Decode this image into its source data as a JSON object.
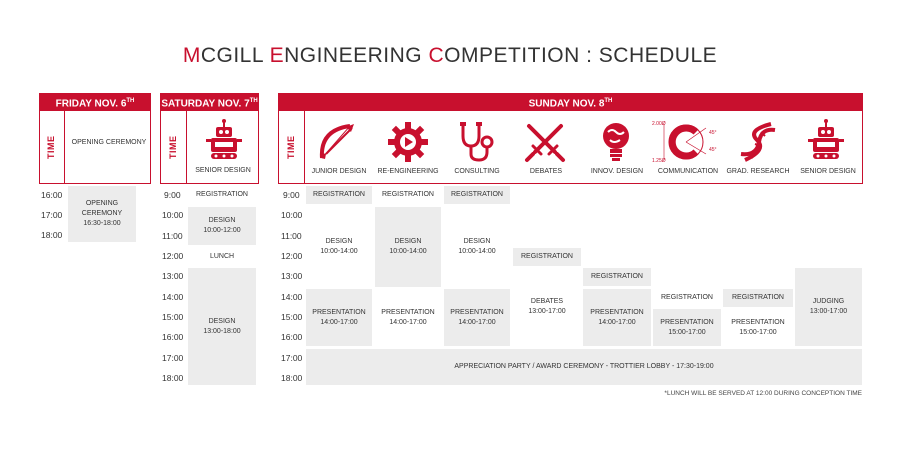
{
  "title": {
    "prefix1": "M",
    "word1": "CGILL ",
    "prefix2": "E",
    "word2": "NGINEERING ",
    "prefix3": "C",
    "word3": "OMPETITION : SCHEDULE"
  },
  "time_label": "TIME",
  "friday": {
    "header": "FRIDAY NOV. 6",
    "header_sup": "TH",
    "column": "OPENING CEREMONY",
    "times": [
      "16:00",
      "17:00",
      "18:00"
    ],
    "event": {
      "name": "OPENING CEREMONY",
      "time": "16:30-18:00"
    }
  },
  "saturday": {
    "header": "SATURDAY NOV. 7",
    "header_sup": "TH",
    "column": "SENIOR DESIGN",
    "times": [
      "9:00",
      "10:00",
      "11:00",
      "12:00",
      "13:00",
      "14:00",
      "15:00",
      "16:00",
      "17:00",
      "18:00"
    ],
    "registration": "REGISTRATION",
    "design1": {
      "name": "DESIGN",
      "time": "10:00-12:00"
    },
    "lunch": "LUNCH",
    "design2": {
      "name": "DESIGN",
      "time": "13:00-18:00"
    }
  },
  "sunday": {
    "header": "SUNDAY NOV. 8",
    "header_sup": "TH",
    "columns": [
      {
        "label": "JUNIOR DESIGN",
        "icon": "bow-arrow-icon"
      },
      {
        "label": "RE-ENGINEERING",
        "icon": "gear-icon"
      },
      {
        "label": "CONSULTING",
        "icon": "stethoscope-icon"
      },
      {
        "label": "DEBATES",
        "icon": "crossed-swords-icon"
      },
      {
        "label": "INNOV. DESIGN",
        "icon": "lightbulb-globe-icon"
      },
      {
        "label": "COMMUNICATION",
        "icon": "circle-c-icon"
      },
      {
        "label": "GRAD. RESEARCH",
        "icon": "dna-icon"
      },
      {
        "label": "SENIOR DESIGN",
        "icon": "robot-icon"
      }
    ],
    "comm_annotations": {
      "a": "2.00Ø",
      "b": "45°",
      "c": "45°",
      "d": "1.25Ø"
    },
    "times": [
      "9:00",
      "10:00",
      "11:00",
      "12:00",
      "13:00",
      "14:00",
      "15:00",
      "16:00",
      "17:00",
      "18:00"
    ],
    "registration": "REGISTRATION",
    "design": {
      "name": "DESIGN",
      "time": "10:00-14:00"
    },
    "presentation": {
      "name": "PRESENTATION",
      "time": "14:00-17:00"
    },
    "debates": {
      "name": "DEBATES",
      "time": "13:00-17:00"
    },
    "presentation_late": {
      "name": "PRESENTATION",
      "time": "15:00-17:00"
    },
    "judging": {
      "name": "JUDGING",
      "time": "13:00-17:00"
    },
    "party": "APPRECIATION PARTY / AWARD CEREMONY - TROTTIER LOBBY - 17:30-19:00"
  },
  "footnote": "*LUNCH WILL BE SERVED AT 12:00 DURING CONCEPTION TIME",
  "colors": {
    "accent": "#c8102e",
    "cell": "#ececec"
  }
}
